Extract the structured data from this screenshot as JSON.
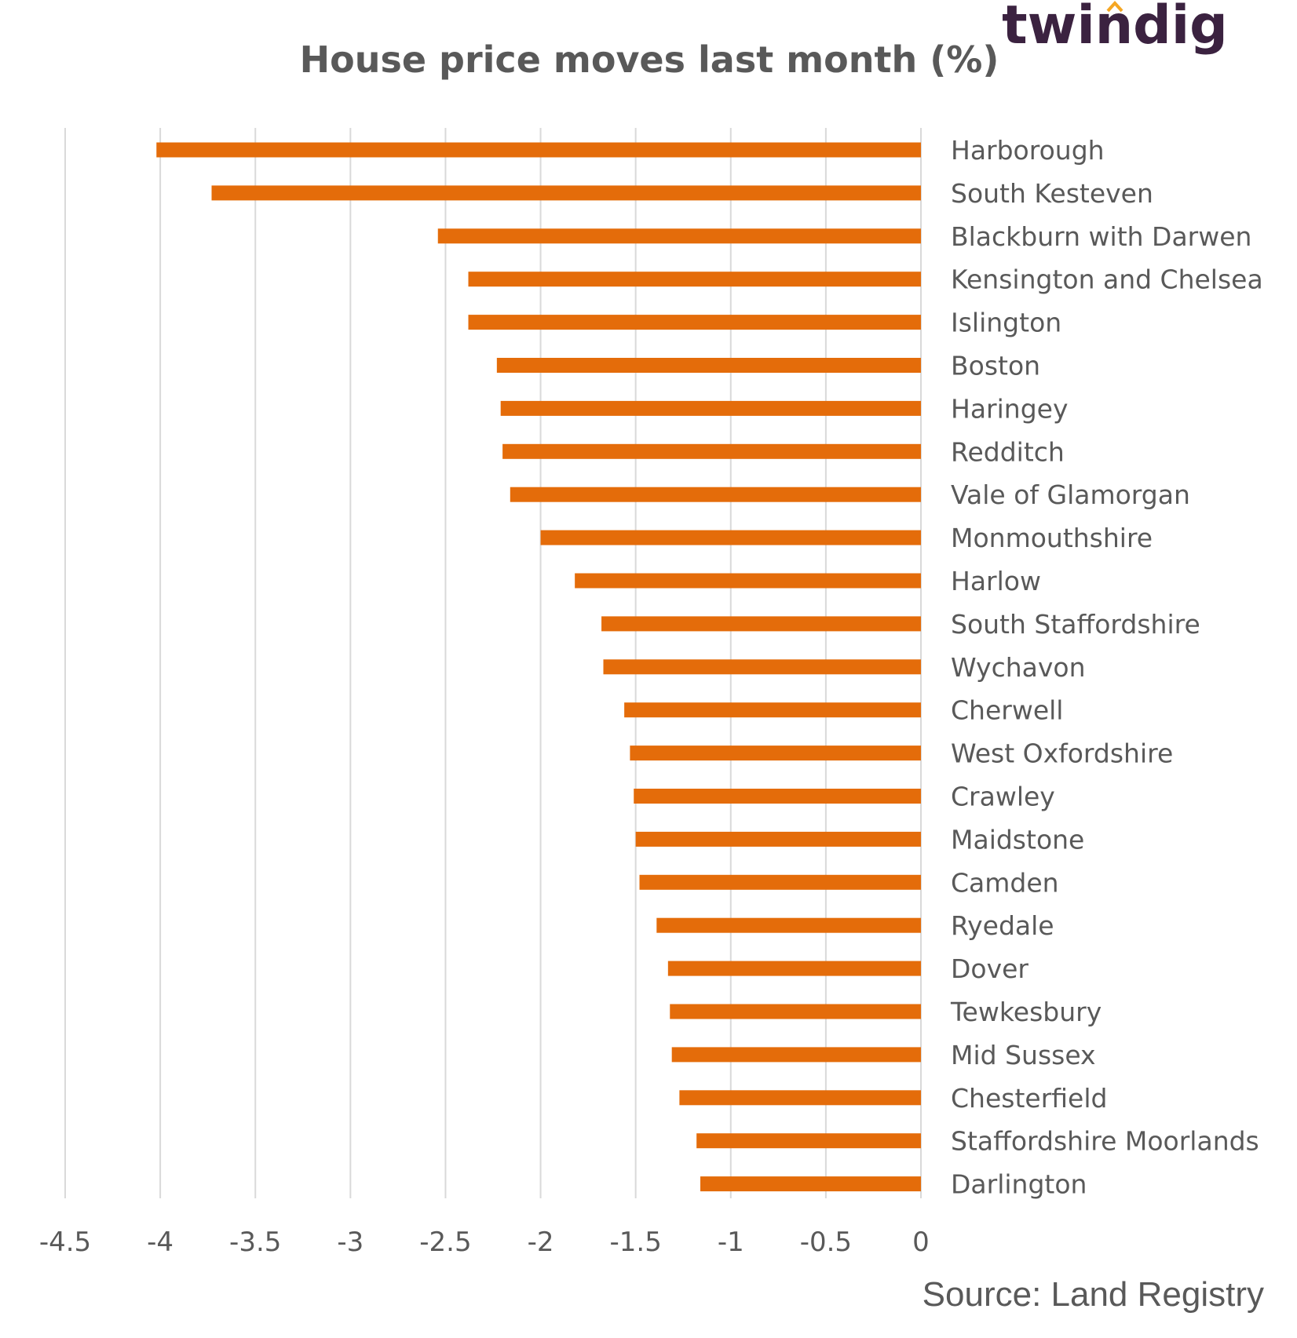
{
  "brand": {
    "logo_text": "twindig",
    "text_color": "#3b2240",
    "accent_color": "#f5a623"
  },
  "source": "Source: Land Registry",
  "chart_data": {
    "type": "bar",
    "orientation": "horizontal",
    "title": "House price moves last month (%)",
    "xlabel": "",
    "ylabel": "",
    "xlim": [
      -4.5,
      0
    ],
    "x_ticks": [
      "-4.5",
      "-4",
      "-3.5",
      "-3",
      "-2.5",
      "-2",
      "-1.5",
      "-1",
      "-0.5",
      "0"
    ],
    "grid": "vertical",
    "legend": "none",
    "bar_color": "#e46c0a",
    "categories": [
      "Harborough",
      "South Kesteven",
      "Blackburn with Darwen",
      "Kensington and Chelsea",
      "Islington",
      "Boston",
      "Haringey",
      "Redditch",
      "Vale of Glamorgan",
      "Monmouthshire",
      "Harlow",
      "South Staffordshire",
      "Wychavon",
      "Cherwell",
      "West Oxfordshire",
      "Crawley",
      "Maidstone",
      "Camden",
      "Ryedale",
      "Dover",
      "Tewkesbury",
      "Mid Sussex",
      "Chesterfield",
      "Staffordshire Moorlands",
      "Darlington"
    ],
    "values": [
      -4.02,
      -3.73,
      -2.54,
      -2.38,
      -2.38,
      -2.23,
      -2.21,
      -2.2,
      -2.16,
      -2.0,
      -1.82,
      -1.68,
      -1.67,
      -1.56,
      -1.53,
      -1.51,
      -1.5,
      -1.48,
      -1.39,
      -1.33,
      -1.32,
      -1.31,
      -1.27,
      -1.18,
      -1.16
    ]
  }
}
